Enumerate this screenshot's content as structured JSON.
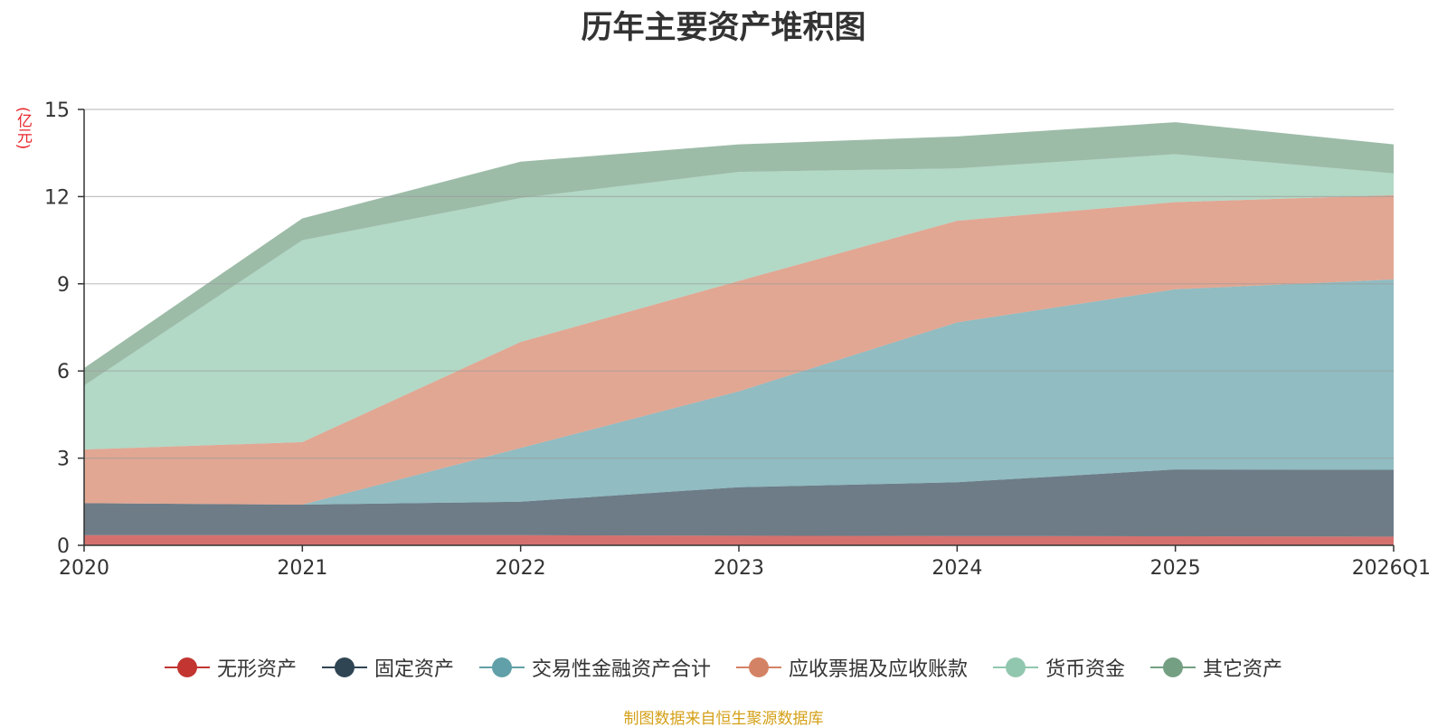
{
  "chart_data": {
    "type": "area",
    "stacked": true,
    "title": "历年主要资产堆积图",
    "ylabel": "(亿元)",
    "categories": [
      "2020",
      "2021",
      "2022",
      "2023",
      "2024",
      "2025",
      "2026Q1"
    ],
    "ylim": [
      0,
      15
    ],
    "yticks": [
      0,
      3,
      6,
      9,
      12,
      15
    ],
    "grid": true,
    "legend_position": "bottom-center",
    "series": [
      {
        "name": "无形资产",
        "color": "#c23531",
        "values": [
          0.35,
          0.35,
          0.35,
          0.33,
          0.32,
          0.31,
          0.3
        ]
      },
      {
        "name": "固定资产",
        "color": "#2f4554",
        "values": [
          1.1,
          1.05,
          1.15,
          1.67,
          1.85,
          2.3,
          2.3
        ]
      },
      {
        "name": "交易性金融资产合计",
        "color": "#61a0a8",
        "values": [
          0.0,
          0.0,
          1.85,
          3.3,
          5.5,
          6.2,
          6.55
        ]
      },
      {
        "name": "应收票据及应收账款",
        "color": "#d48265",
        "values": [
          1.85,
          2.15,
          3.65,
          3.8,
          3.5,
          3.0,
          2.9
        ]
      },
      {
        "name": "货币资金",
        "color": "#91c7ae",
        "values": [
          2.2,
          6.95,
          4.95,
          3.75,
          1.8,
          1.65,
          0.75
        ]
      },
      {
        "name": "其它资产",
        "color": "#749f83",
        "values": [
          0.6,
          0.75,
          1.25,
          0.95,
          1.1,
          1.1,
          1.0
        ]
      }
    ],
    "source": "制图数据来自恒生聚源数据库"
  }
}
